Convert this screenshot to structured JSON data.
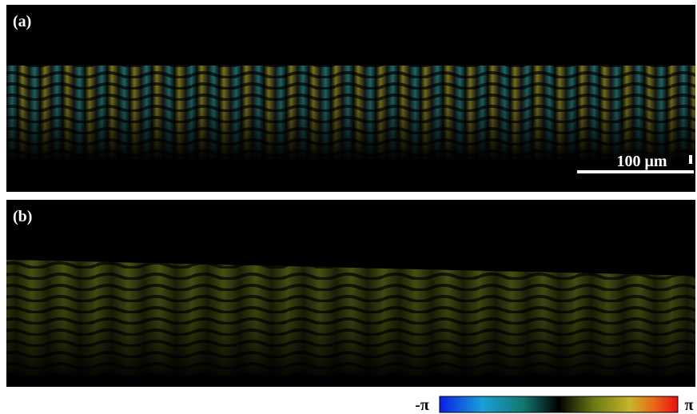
{
  "panels": [
    {
      "label": "(a)"
    },
    {
      "label": "(b)"
    }
  ],
  "scale_bar": "100 μm",
  "colorbar": {
    "min_label": "-π",
    "max_label": "π"
  }
}
